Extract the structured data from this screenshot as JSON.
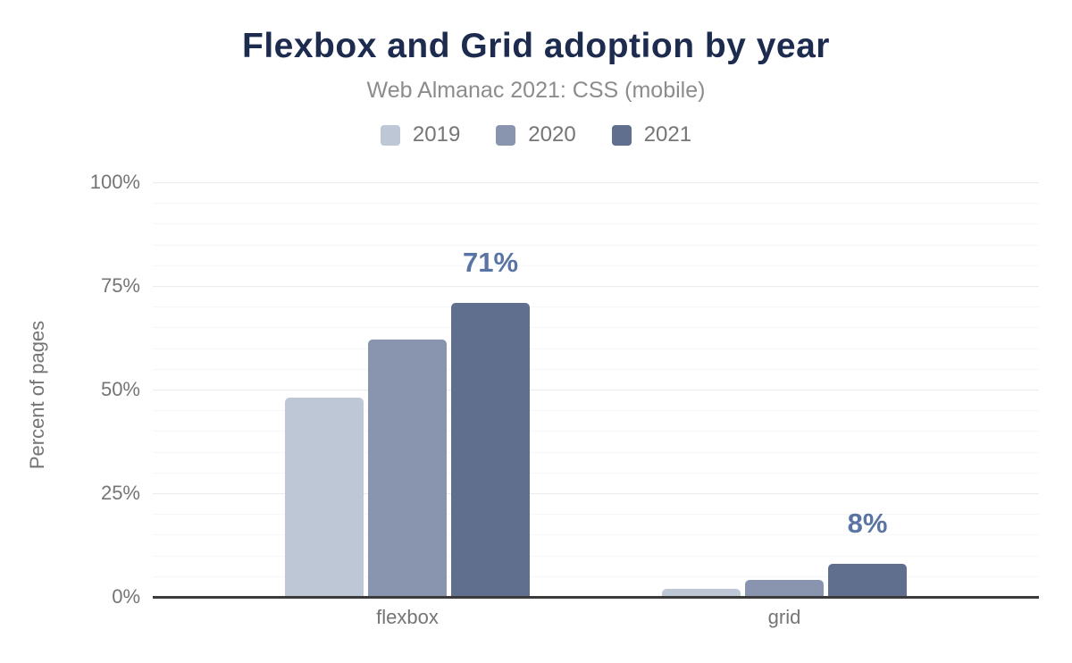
{
  "header": {
    "title": "Flexbox and Grid adoption by year",
    "subtitle": "Web Almanac 2021: CSS (mobile)"
  },
  "colors": {
    "title": "#1d2b4f",
    "subtitle": "#8c8c8c",
    "axis_text": "#757575",
    "axis_line": "#3b3b3b",
    "data_label": "#5a74a3",
    "series_2019": "#bdc7d6",
    "series_2020": "#8995ae",
    "series_2021": "#5f6f8d",
    "background": "#ffffff"
  },
  "chart_data": {
    "type": "bar",
    "title": "Flexbox and Grid adoption by year",
    "subtitle": "Web Almanac 2021: CSS (mobile)",
    "categories": [
      "flexbox",
      "grid"
    ],
    "series": [
      {
        "name": "2019",
        "color": "#bdc7d6",
        "values": [
          48,
          2
        ]
      },
      {
        "name": "2020",
        "color": "#8995ae",
        "values": [
          62,
          4
        ]
      },
      {
        "name": "2021",
        "color": "#5f6f8d",
        "values": [
          71,
          8
        ],
        "labels": [
          "71%",
          "8%"
        ]
      }
    ],
    "xlabel": "",
    "ylabel": "Percent of pages",
    "ylim": [
      0,
      100
    ],
    "yticks": [
      "0%",
      "25%",
      "50%",
      "75%",
      "100%"
    ],
    "grid": "horizontal; minor lines every 5%, major lines every 25%",
    "legend_position": "top-center",
    "data_label_color": "#5a74a3",
    "bar_corner": "rounded-top"
  }
}
